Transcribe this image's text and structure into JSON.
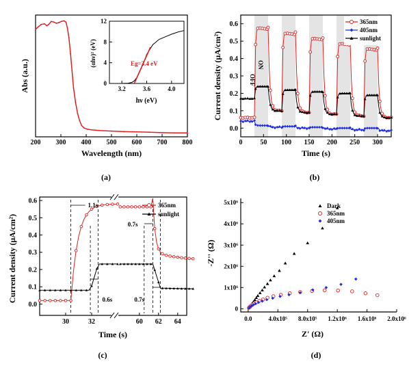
{
  "chart_data": [
    {
      "panel": "(a)",
      "type": "line",
      "xlabel": "Wavelength (nm)",
      "ylabel": "Abs (a.u.)",
      "xlim": [
        200,
        800
      ],
      "xticks": [
        200,
        300,
        400,
        500,
        600,
        700,
        800
      ],
      "series": [
        {
          "color": "#e0201f",
          "x": [
            200,
            210,
            222,
            235,
            245,
            252,
            262,
            272,
            282,
            292,
            302,
            312,
            320,
            326,
            332,
            338,
            344,
            350,
            358,
            366,
            374,
            382,
            392,
            405,
            420,
            450,
            500,
            550,
            600,
            650,
            700,
            750,
            800
          ],
          "y": [
            0.86,
            0.88,
            0.9,
            0.905,
            0.89,
            0.9,
            0.925,
            0.92,
            0.91,
            0.915,
            0.925,
            0.93,
            0.92,
            0.87,
            0.79,
            0.66,
            0.52,
            0.38,
            0.26,
            0.17,
            0.11,
            0.07,
            0.05,
            0.04,
            0.035,
            0.03,
            0.025,
            0.02,
            0.018,
            0.015,
            0.012,
            0.01,
            0.01
          ]
        }
      ],
      "inset": {
        "xlabel": "hν (eV)",
        "ylabel": "(αhν)² (eV)",
        "xlim": [
          3.0,
          4.2
        ],
        "ylim": [
          0,
          12
        ],
        "xticks": [
          "3.2",
          "3.6",
          "4.0"
        ],
        "yticks": [
          "0",
          "4",
          "8",
          "12"
        ],
        "annotation": "Eg=3.4 eV",
        "curve": {
          "x": [
            3.0,
            3.2,
            3.3,
            3.36,
            3.4,
            3.45,
            3.5,
            3.55,
            3.6,
            3.7,
            3.8,
            3.9,
            4.0,
            4.1,
            4.2
          ],
          "y": [
            0,
            0,
            0.05,
            0.2,
            0.5,
            1.3,
            2.6,
            4.0,
            5.6,
            7.5,
            8.5,
            9.0,
            9.5,
            9.9,
            10.2
          ]
        },
        "fit": {
          "x": [
            3.4,
            3.66
          ],
          "y": [
            0,
            7.0
          ]
        }
      }
    },
    {
      "panel": "(b)",
      "type": "line",
      "xlabel": "Time (s)",
      "ylabel": "Current density (μA/cm²)",
      "xlim": [
        0,
        330
      ],
      "ylim": [
        -0.05,
        0.65
      ],
      "xticks": [
        0,
        50,
        100,
        150,
        200,
        250,
        300
      ],
      "yticks": [
        "0.0",
        "0.1",
        "0.2",
        "0.3",
        "0.4",
        "0.5",
        "0.6"
      ],
      "off_label": "OFF",
      "on_label": "ON",
      "on_intervals": [
        [
          30,
          60
        ],
        [
          90,
          120
        ],
        [
          150,
          180
        ],
        [
          210,
          240
        ],
        [
          270,
          300
        ]
      ],
      "series": [
        {
          "name": "365nm",
          "color": "#e0201f",
          "marker": "circle",
          "dark": [
            0.06,
            0.1,
            0.09,
            0.08,
            0.07,
            0.06
          ],
          "light": [
            0.58,
            0.55,
            0.52,
            0.49,
            0.46
          ]
        },
        {
          "name": "405nm",
          "color": "#1f2fe0",
          "marker": "diamond",
          "dark": [
            0.04,
            0.005,
            0.0,
            -0.005,
            -0.01,
            -0.015
          ],
          "light": [
            0.015,
            0.01,
            0.005,
            0.0,
            0.0
          ]
        },
        {
          "name": "sunlight",
          "color": "#000000",
          "marker": "triangle",
          "dark": [
            0.17,
            0.1,
            0.09,
            0.08,
            0.07,
            0.06
          ],
          "light": [
            0.24,
            0.22,
            0.21,
            0.2,
            0.19
          ]
        }
      ]
    },
    {
      "panel": "(c)",
      "type": "line",
      "xlabel": "Time (s)",
      "ylabel": "Current density (μA/cm²)",
      "ylim": [
        -0.05,
        0.65
      ],
      "xticks": [
        "30",
        "32",
        "60",
        "62",
        "64"
      ],
      "yticks": [
        "0.0",
        "0.1",
        "0.2",
        "0.3",
        "0.4",
        "0.5",
        "0.6"
      ],
      "annotations": [
        "1.1s",
        "0.6s",
        "0.7s",
        "0.7s"
      ],
      "series": [
        {
          "name": "365nm",
          "color": "#e0201f",
          "marker": "circle"
        },
        {
          "name": "sunlight",
          "color": "#000000",
          "marker": "triangle"
        }
      ]
    },
    {
      "panel": "(d)",
      "type": "scatter",
      "xlabel": "Z' (Ω)",
      "ylabel": "-Z'' (Ω)",
      "xlim": [
        -100000,
        2000000
      ],
      "ylim": [
        -150000,
        5200000
      ],
      "xticks": [
        "0.0",
        "4.0x10⁵",
        "8.0x10⁵",
        "1.2x10⁶",
        "1.6x10⁶",
        "2.0x10⁶"
      ],
      "yticks": [
        "0",
        "1x10⁶",
        "2x10⁶",
        "3x10⁶",
        "4x10⁶",
        "5x10⁶"
      ],
      "series": [
        {
          "name": "Dark",
          "color": "#000000",
          "marker": "triangle",
          "x": [
            10000,
            20000,
            35000,
            50000,
            70000,
            90000,
            110000,
            130000,
            160000,
            190000,
            220000,
            260000,
            300000,
            350000,
            420000,
            500000,
            620000,
            800000,
            1000000,
            1200000
          ],
          "y": [
            40000,
            80000,
            160000,
            240000,
            330000,
            420000,
            520000,
            620000,
            750000,
            880000,
            1020000,
            1180000,
            1350000,
            1550000,
            1800000,
            2150000,
            2600000,
            3100000,
            3800000,
            4750000
          ]
        },
        {
          "name": "365nm",
          "color": "#e0201f",
          "marker": "circle",
          "x": [
            10000,
            25000,
            40000,
            60000,
            80000,
            110000,
            150000,
            200000,
            260000,
            340000,
            440000,
            560000,
            700000,
            860000,
            1030000,
            1210000,
            1400000,
            1580000,
            1740000
          ],
          "y": [
            50000,
            100000,
            150000,
            200000,
            250000,
            300000,
            370000,
            440000,
            520000,
            590000,
            660000,
            730000,
            790000,
            840000,
            870000,
            860000,
            820000,
            730000,
            640000
          ]
        },
        {
          "name": "405nm",
          "color": "#1f2fe0",
          "marker": "diamond",
          "x": [
            10000,
            25000,
            45000,
            70000,
            100000,
            140000,
            190000,
            250000,
            330000,
            430000,
            550000,
            700000,
            870000,
            1050000,
            1250000,
            1450000
          ],
          "y": [
            40000,
            90000,
            140000,
            190000,
            240000,
            300000,
            360000,
            430000,
            500000,
            580000,
            660000,
            760000,
            890000,
            1000000,
            1150000,
            1400000
          ]
        }
      ]
    }
  ]
}
